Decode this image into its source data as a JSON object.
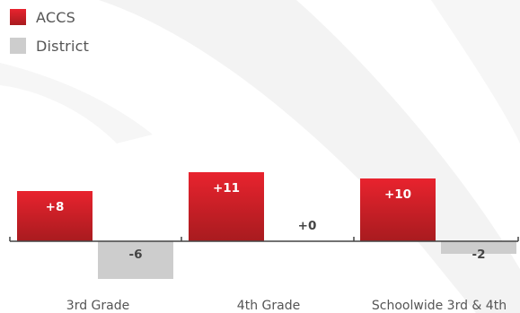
{
  "colors": {
    "accs_top": "#e8232e",
    "accs_bottom": "#a81b1f",
    "district": "#cdcdcd",
    "axis": "#444444",
    "category_text": "#555555",
    "label_dark": "#444444",
    "label_on_red": "#ffffff"
  },
  "legend": {
    "accs_label": "ACCS",
    "district_label": "District"
  },
  "chart_data": {
    "type": "bar",
    "categories": [
      "3rd Grade",
      "4th Grade",
      "Schoolwide 3rd & 4th"
    ],
    "series": [
      {
        "name": "ACCS",
        "values": [
          8,
          11,
          10
        ],
        "labels": [
          "+8",
          "+11",
          "+10"
        ]
      },
      {
        "name": "District",
        "values": [
          -6,
          0,
          -2
        ],
        "labels": [
          "-6",
          "+0",
          "-2"
        ]
      }
    ],
    "legend_position": "top-left",
    "grid": false,
    "ylim": [
      -6,
      11
    ]
  }
}
